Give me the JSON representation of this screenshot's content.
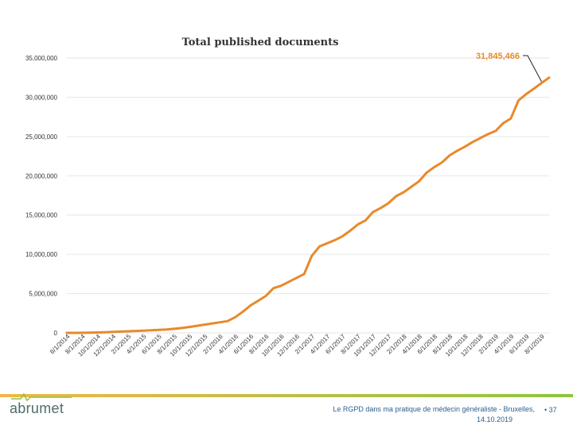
{
  "chart_data": {
    "type": "line",
    "title": "Total published documents",
    "yticks": [
      "0",
      "5,000,000",
      "10,000,000",
      "15,000,000",
      "20,000,000",
      "25,000,000",
      "30,000,000",
      "35,000,000"
    ],
    "ylim": [
      0,
      35000000
    ],
    "x": [
      "6/1/2014",
      "7/1/2014",
      "8/1/2014",
      "9/1/2014",
      "10/1/2014",
      "11/1/2014",
      "12/1/2014",
      "1/1/2015",
      "2/1/2015",
      "3/1/2015",
      "4/1/2015",
      "5/1/2015",
      "6/1/2015",
      "7/1/2015",
      "8/1/2015",
      "9/1/2015",
      "10/1/2015",
      "11/1/2015",
      "12/1/2015",
      "1/1/2016",
      "2/1/2016",
      "3/1/2016",
      "4/1/2016",
      "5/1/2016",
      "6/1/2016",
      "7/1/2016",
      "8/1/2016",
      "9/1/2016",
      "10/1/2016",
      "11/1/2016",
      "12/1/2016",
      "1/1/2017",
      "2/1/2017",
      "3/1/2017",
      "4/1/2017",
      "5/1/2017",
      "6/1/2017",
      "7/1/2017",
      "8/1/2017",
      "9/1/2017",
      "10/1/2017",
      "11/1/2017",
      "12/1/2017",
      "1/1/2018",
      "2/1/2018",
      "3/1/2018",
      "4/1/2018",
      "5/1/2018",
      "6/1/2018",
      "7/1/2018",
      "8/1/2018",
      "9/1/2018",
      "10/1/2018",
      "11/1/2018",
      "12/1/2018",
      "1/1/2019",
      "2/1/2019",
      "3/1/2019",
      "4/1/2019",
      "5/1/2019",
      "6/1/2019",
      "7/1/2019",
      "8/1/2019",
      "9/1/2019"
    ],
    "xticks": [
      "6/1/2014",
      "8/1/2014",
      "10/1/2014",
      "12/1/2014",
      "2/1/2015",
      "4/1/2015",
      "6/1/2015",
      "8/1/2015",
      "10/1/2015",
      "12/1/2015",
      "2/1/2016",
      "4/1/2016",
      "6/1/2016",
      "8/1/2016",
      "10/1/2016",
      "12/1/2016",
      "2/1/2017",
      "4/1/2017",
      "6/1/2017",
      "8/1/2017",
      "10/1/2017",
      "12/1/2017",
      "2/1/2018",
      "4/1/2018",
      "6/1/2018",
      "8/1/2018",
      "10/1/2018",
      "12/1/2018",
      "2/1/2019",
      "4/1/2019",
      "6/1/2019",
      "8/1/2019"
    ],
    "series": [
      {
        "color": "#e8892b",
        "values": [
          0,
          5000,
          15000,
          30000,
          50000,
          80000,
          120000,
          160000,
          200000,
          240000,
          280000,
          320000,
          380000,
          440000,
          520000,
          620000,
          750000,
          900000,
          1050000,
          1200000,
          1350000,
          1500000,
          2000000,
          2700000,
          3500000,
          4100000,
          4700000,
          5700000,
          6000000,
          6500000,
          7000000,
          7500000,
          9800000,
          11000000,
          11400000,
          11800000,
          12300000,
          13000000,
          13800000,
          14300000,
          15400000,
          15900000,
          16500000,
          17400000,
          17900000,
          18600000,
          19300000,
          20400000,
          21100000,
          21700000,
          22600000,
          23200000,
          23700000,
          24300000,
          24800000,
          25300000,
          25700000,
          26700000,
          27300000,
          29600000,
          30400000,
          31100000,
          31800000,
          32500000
        ]
      }
    ],
    "annotation": {
      "text": "31,845,466",
      "color": "#e8892b"
    },
    "grid": true,
    "line_color": "#e8892b"
  },
  "footer": {
    "logo_text": "abrumet",
    "line1": "Le RGPD dans ma pratique de médecin généraliste - Bruxelles,",
    "line2": "14.10.2019",
    "bullet": "•",
    "page_number": "37"
  }
}
